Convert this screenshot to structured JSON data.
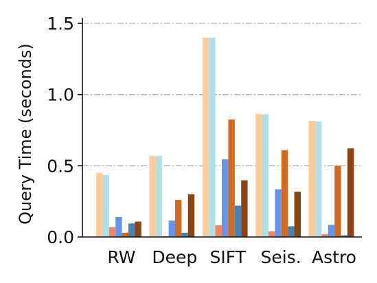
{
  "chart_data": {
    "type": "bar",
    "title": "",
    "xlabel": "",
    "ylabel": "Query Time (seconds)",
    "ylim": [
      0,
      1.5
    ],
    "yticks": [
      "0.0",
      "0.5",
      "1.0",
      "1.5"
    ],
    "ytick_values": [
      0,
      0.5,
      1.0,
      1.5
    ],
    "grid": "horizontal dash-dot",
    "categories": [
      "RW",
      "Deep",
      "SIFT",
      "Seis.",
      "Astro"
    ],
    "series": [
      {
        "color": "#FFCC99",
        "values": [
          0.45,
          0.57,
          1.4,
          0.865,
          0.815
        ]
      },
      {
        "color": "#B0E0E6",
        "values": [
          0.435,
          0.57,
          1.4,
          0.862,
          0.812
        ]
      },
      {
        "color": "#F4845F",
        "values": [
          0.068,
          0.006,
          0.082,
          0.04,
          0.02
        ]
      },
      {
        "color": "#6495ED",
        "values": [
          0.14,
          0.115,
          0.545,
          0.335,
          0.085
        ]
      },
      {
        "color": "#D2691E",
        "values": [
          0.03,
          0.26,
          0.825,
          0.61,
          0.5
        ]
      },
      {
        "color": "#4682B4",
        "values": [
          0.095,
          0.03,
          0.22,
          0.075,
          0.012
        ]
      },
      {
        "color": "#8B4513",
        "values": [
          0.108,
          0.3,
          0.398,
          0.318,
          0.622
        ]
      }
    ]
  }
}
